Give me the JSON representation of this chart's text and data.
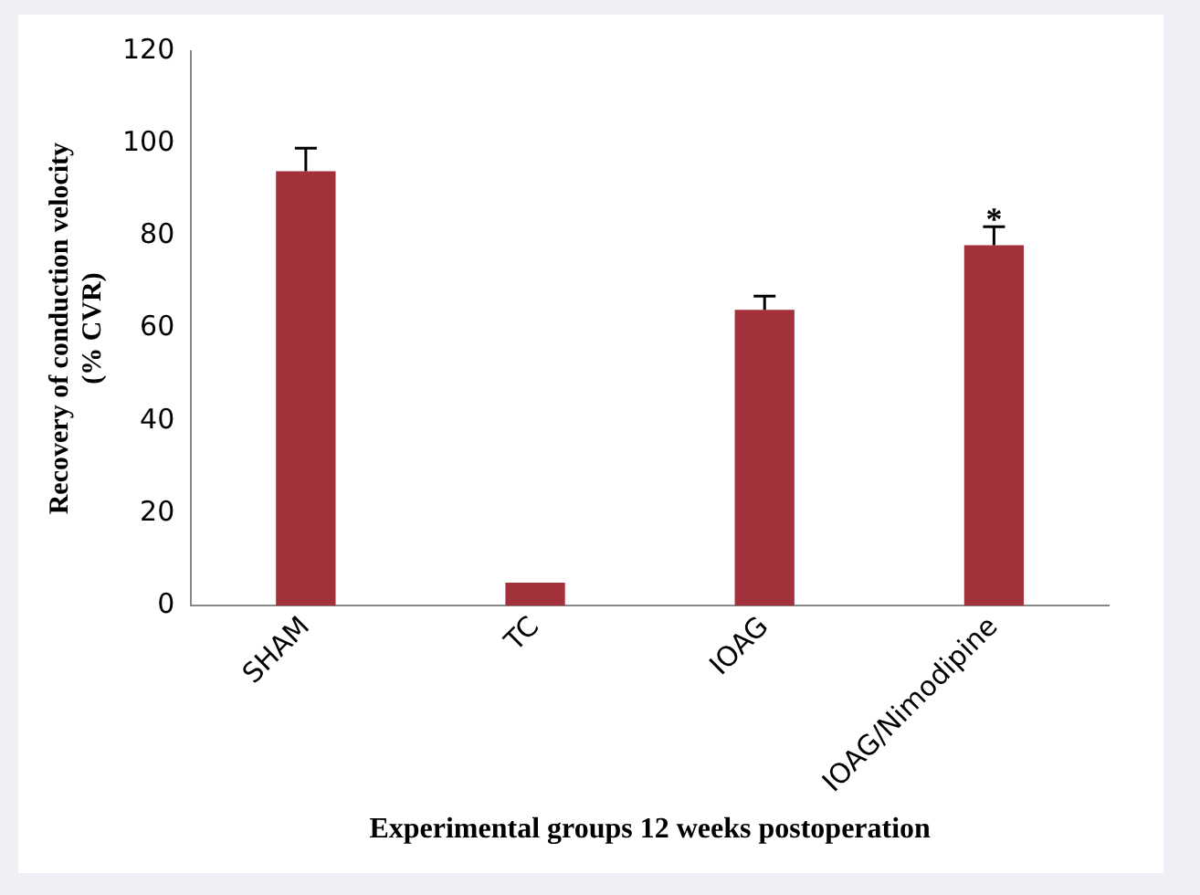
{
  "chart_data": {
    "type": "bar",
    "xlabel": "Experimental groups 12 weeks postoperation",
    "ylabel": "Recovery of conduction velocity\n(% CVR)",
    "categories": [
      "SHAM",
      "TC",
      "IOAG",
      "IOAG/Nimodipine"
    ],
    "values": [
      94,
      5,
      64,
      78
    ],
    "errors": [
      [
        94,
        99
      ],
      null,
      [
        64,
        67
      ],
      [
        78,
        82
      ]
    ],
    "color": "#a3313c",
    "ylim": [
      0,
      120
    ],
    "yticks": [
      0,
      20,
      40,
      60,
      80,
      100,
      120
    ],
    "grid": false,
    "legend": false,
    "annotations": [
      {
        "text": "*",
        "x": "IOAG/Nimodipine",
        "y": 82
      }
    ]
  }
}
